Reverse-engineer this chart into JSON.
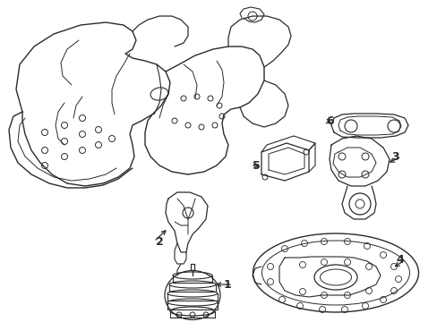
{
  "background_color": "#ffffff",
  "line_color": "#2a2a2a",
  "line_width": 0.8,
  "fig_width": 4.89,
  "fig_height": 3.6,
  "dpi": 100
}
